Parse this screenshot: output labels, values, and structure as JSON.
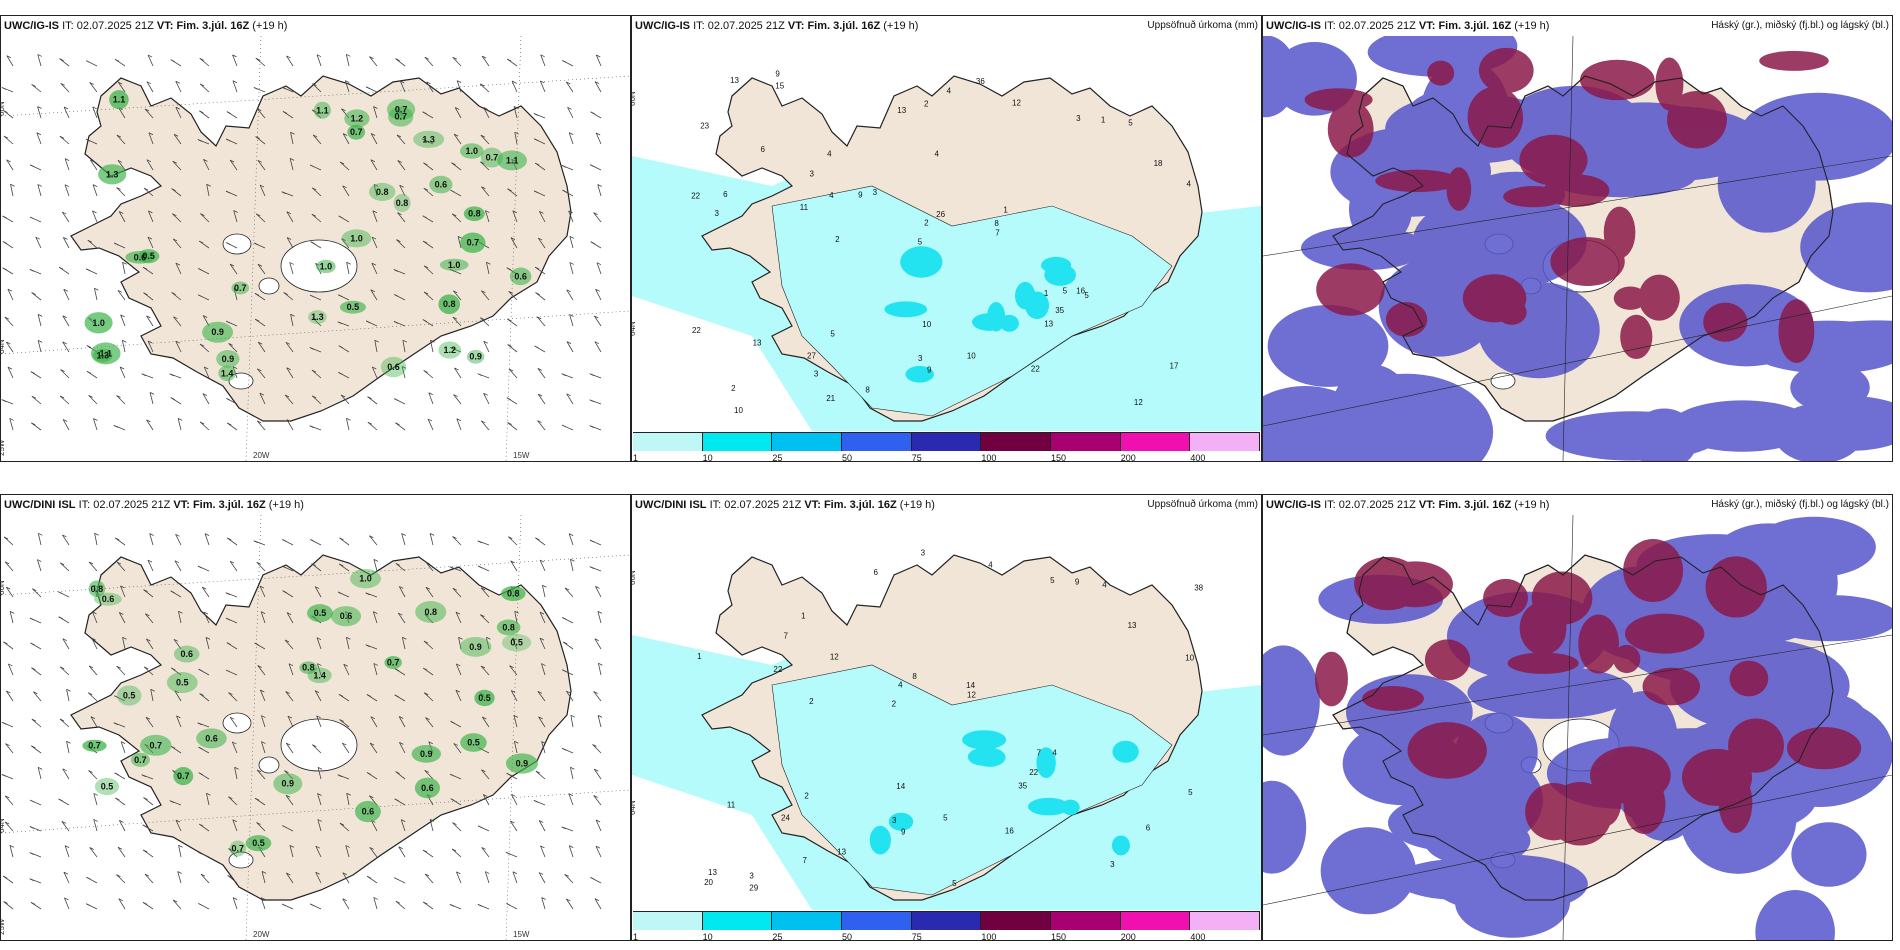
{
  "panels": [
    {
      "id": "tl",
      "model": "UWC/IG-IS",
      "it_label": "IT:",
      "it": "02.07.2025 21Z",
      "vt_label": "VT:",
      "vt": "Fim. 3.júl. 16Z",
      "lead": "(+19 h)",
      "right": "",
      "kind": "wind"
    },
    {
      "id": "tm",
      "model": "UWC/IG-IS",
      "it_label": "IT:",
      "it": "02.07.2025 21Z",
      "vt_label": "VT:",
      "vt": "Fim. 3.júl. 16Z",
      "lead": "(+19 h)",
      "right": "Uppsöfnuð úrkoma (mm)",
      "kind": "precip"
    },
    {
      "id": "tr",
      "model": "UWC/IG-IS",
      "it_label": "IT:",
      "it": "02.07.2025 21Z",
      "vt_label": "VT:",
      "vt": "Fim. 3.júl. 16Z",
      "lead": "(+19 h)",
      "right": "Háský (gr.), miðský (fj.bl.) og lágský (bl.)",
      "kind": "cloud"
    },
    {
      "id": "bl",
      "model": "UWC/DINI ISL",
      "it_label": "IT:",
      "it": "02.07.2025 21Z",
      "vt_label": "VT:",
      "vt": "Fim. 3.júl. 16Z",
      "lead": "(+19 h)",
      "right": "",
      "kind": "wind"
    },
    {
      "id": "bm",
      "model": "UWC/DINI ISL",
      "it_label": "IT:",
      "it": "02.07.2025 21Z",
      "vt_label": "VT:",
      "vt": "Fim. 3.júl. 16Z",
      "lead": "(+19 h)",
      "right": "Uppsöfnuð úrkoma (mm)",
      "kind": "precip"
    },
    {
      "id": "br",
      "model": "UWC/IG-IS",
      "it_label": "IT:",
      "it": "02.07.2025 21Z",
      "vt_label": "VT:",
      "vt": "Fim. 3.júl. 16Z",
      "lead": "(+19 h)",
      "right": "Háský (gr.), miðský (fj.bl.) og lágský (bl.)",
      "kind": "cloud"
    }
  ],
  "axes": {
    "lat66": "66N",
    "lat64": "64N",
    "lon25": "25W",
    "lon20": "20W",
    "lon15": "15W"
  },
  "colorbar": {
    "ticks": [
      "1",
      "10",
      "25",
      "50",
      "75",
      "100",
      "150",
      "200",
      "400"
    ],
    "colors": [
      "#bff7f7",
      "#00e8f0",
      "#00c0f0",
      "#3060f0",
      "#2a2ab0",
      "#700040",
      "#a80070",
      "#f010b0",
      "#f4b0f4"
    ]
  },
  "colors": {
    "land": "#f1e5d7",
    "sea": "#ffffff",
    "precip_light": "#b5fbfb",
    "precip_mid": "#23e3f0",
    "cloud_low": "#5555cc",
    "cloud_high": "#8b1a4a",
    "wind_green": "#3bb34a"
  },
  "wind_values_tl": [
    "0.8",
    "0.7",
    "0.9",
    "0.8",
    "1.2",
    "0.5",
    "1.1",
    "1.3",
    "0.6",
    "0.7",
    "1.0",
    "0.9",
    "1.1",
    "0.5",
    "0.8",
    "1.3",
    "1.0",
    "0.7",
    "1.3",
    "0.7",
    "1.1",
    "0.7",
    "1.2",
    "0.6",
    "1.0",
    "0.8",
    "1.1",
    "1.4",
    "1.0",
    "0.6",
    "0.9",
    "1.3",
    "0.7",
    "1.0",
    "0.6"
  ],
  "wind_values_bl": [
    "0.5",
    "0.5",
    "0.6",
    "0.8",
    "0.9",
    "0.6",
    "0.7",
    "0.5",
    "0.8",
    "1.4",
    "0.5",
    "0.6",
    "0.7",
    "0.9",
    "0.8",
    "0.5",
    "0.6",
    "0.7",
    "0.9",
    "0.8",
    "1.0",
    "0.7",
    "0.6",
    "0.5",
    "0.8",
    "0.6",
    "0.9",
    "0.5",
    "0.7",
    "0.7",
    "0.5"
  ],
  "precip_values_tm": [
    "3",
    "2",
    "3",
    "4",
    "1",
    "5",
    "6",
    "2",
    "3",
    "1",
    "4",
    "5",
    "3",
    "2",
    "4",
    "3",
    "5",
    "12",
    "17",
    "16",
    "36",
    "9",
    "11",
    "13",
    "21",
    "22",
    "8",
    "10",
    "9",
    "7",
    "13",
    "18",
    "23",
    "35",
    "22",
    "27",
    "15",
    "13",
    "10",
    "5",
    "4",
    "2",
    "6",
    "3",
    "1",
    "9",
    "12",
    "13",
    "26",
    "22",
    "10",
    "8",
    "5",
    "4"
  ],
  "precip_values_bm": [
    "2",
    "3",
    "4",
    "1",
    "5",
    "2",
    "3",
    "6",
    "4",
    "5",
    "12",
    "22",
    "35",
    "7",
    "10",
    "14",
    "13",
    "9",
    "12",
    "11",
    "13",
    "38",
    "22",
    "16",
    "24",
    "29",
    "20",
    "5",
    "4",
    "3",
    "2",
    "1",
    "7",
    "9",
    "3",
    "4",
    "6",
    "8",
    "5",
    "14",
    "13",
    "7"
  ]
}
